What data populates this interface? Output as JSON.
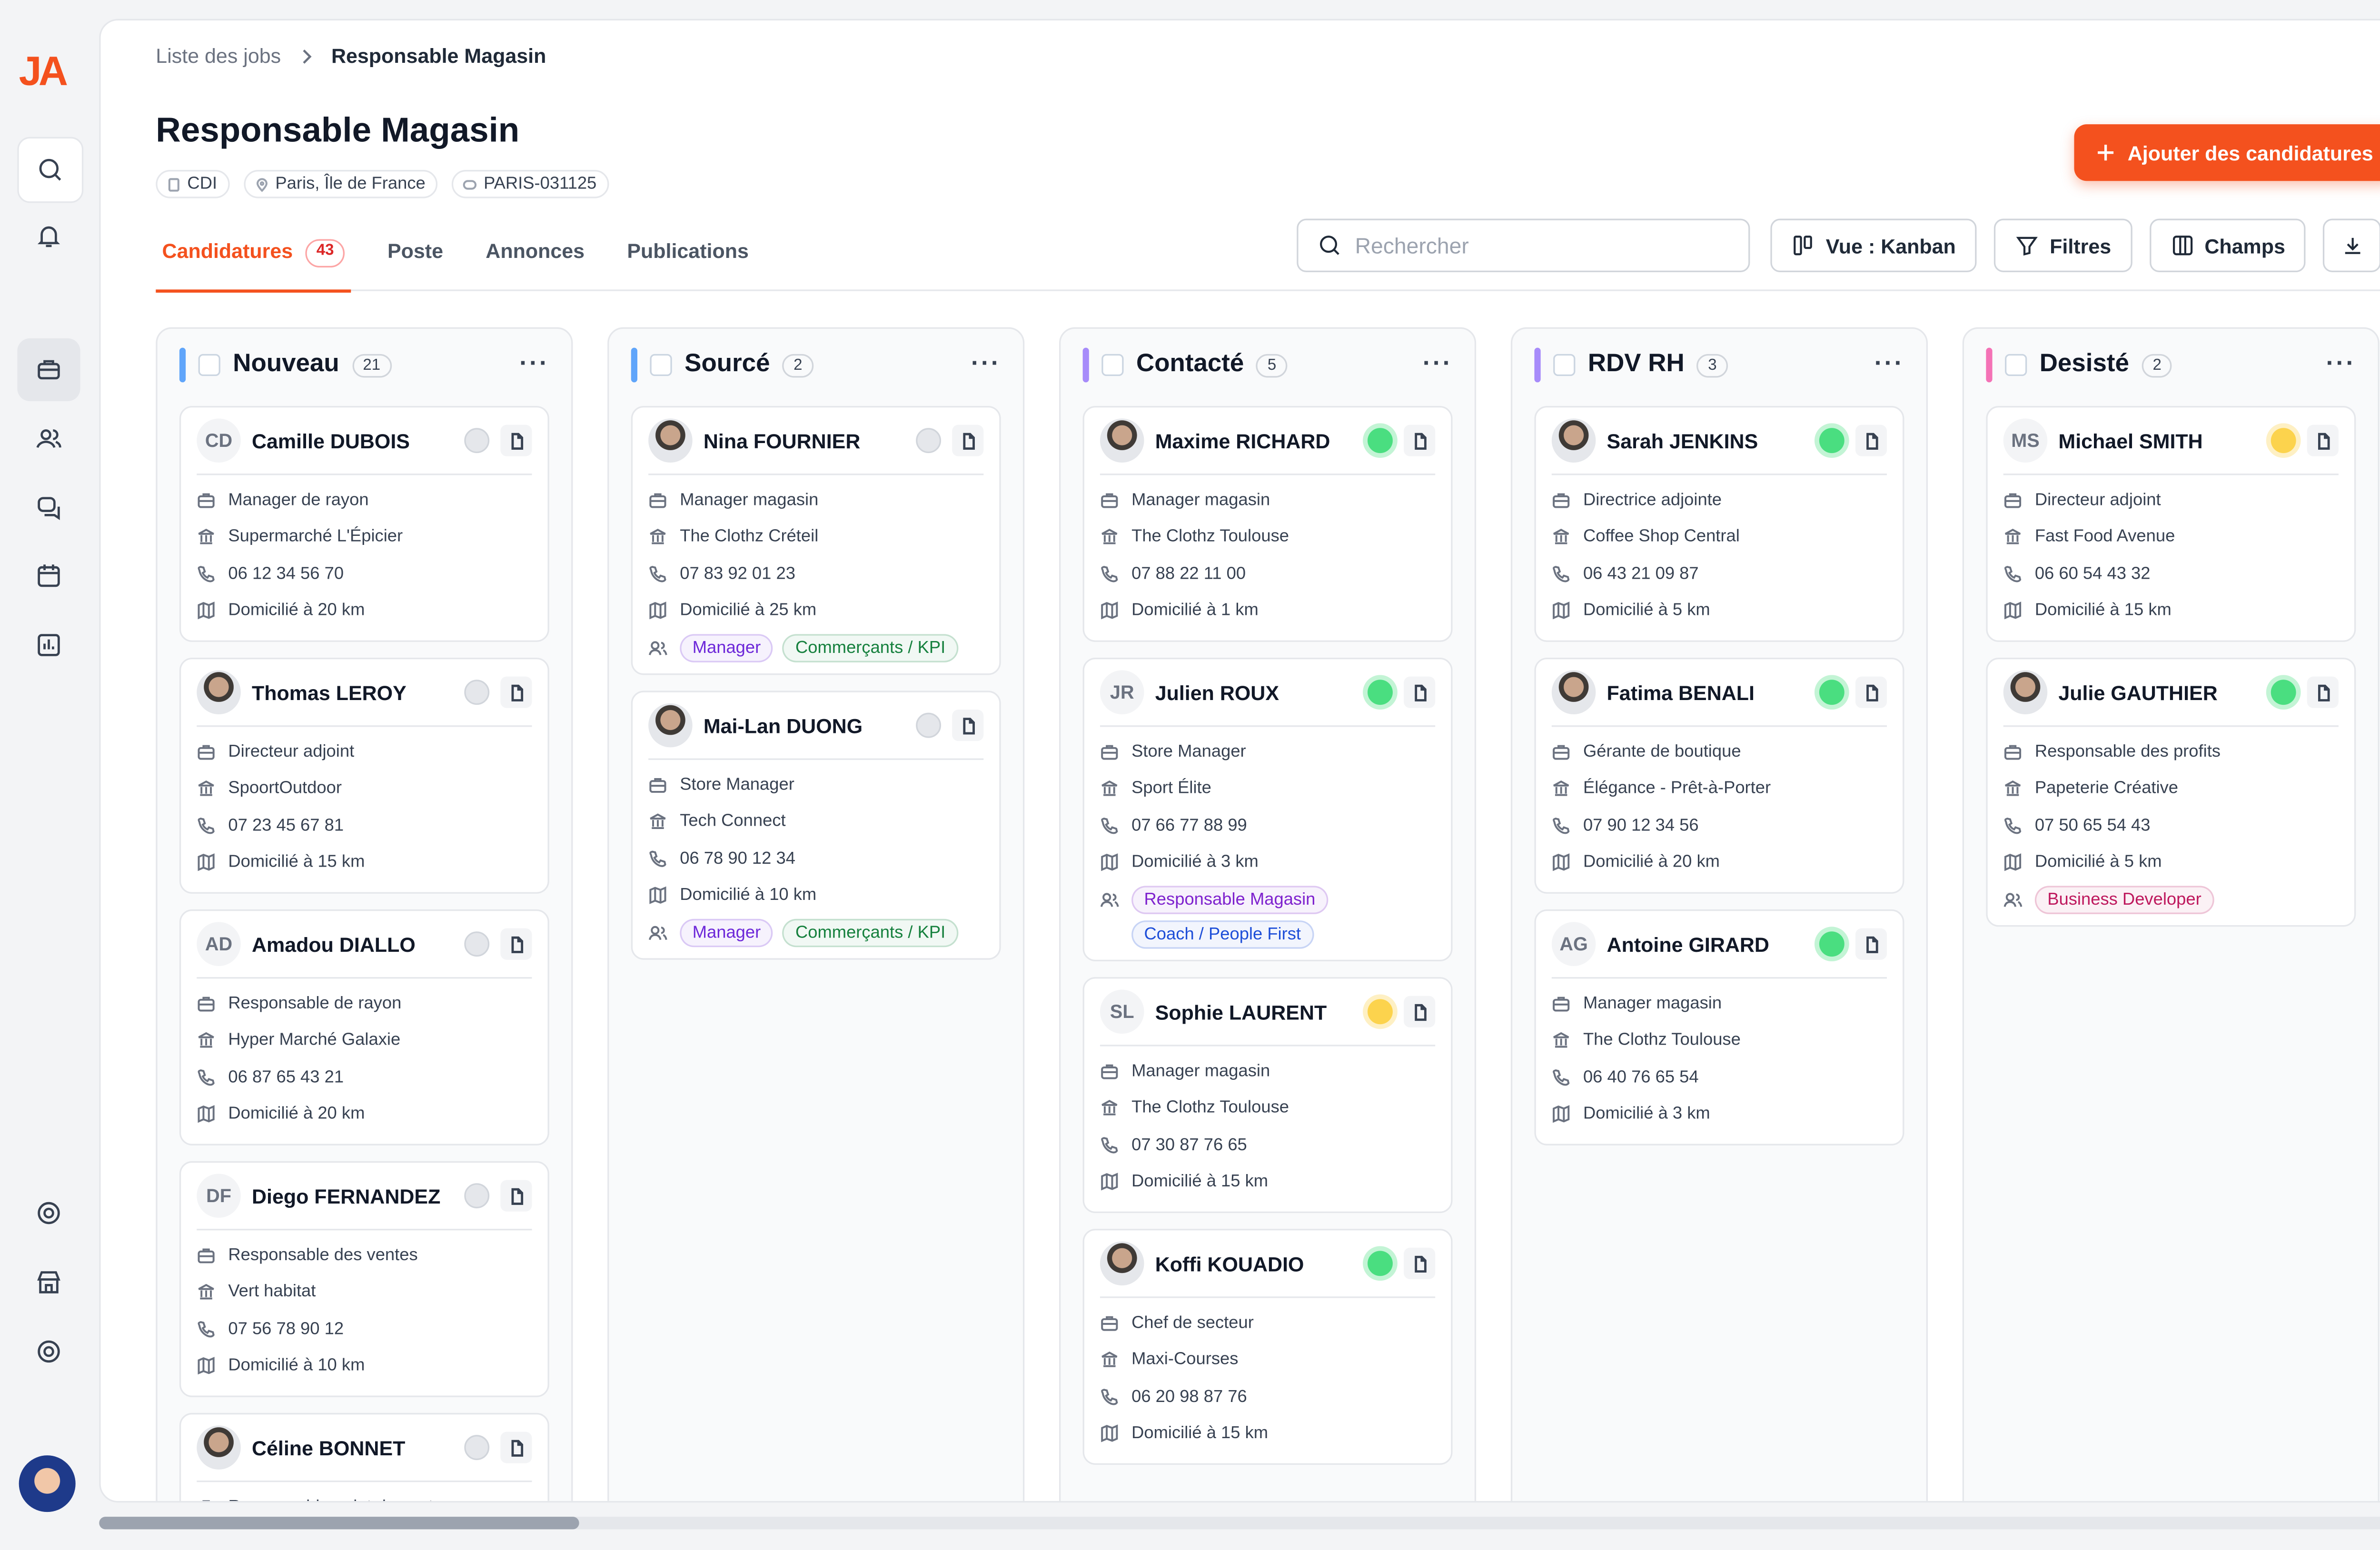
{
  "sidebar": {
    "logo": "JA"
  },
  "breadcrumb": [
    "Liste des jobs",
    "Responsable Magasin"
  ],
  "header": {
    "title": "Responsable Magasin",
    "chips": [
      "CDI",
      "Paris, Île de France",
      "PARIS-031125"
    ],
    "add_button": "Ajouter des candidatures"
  },
  "tabs": [
    {
      "label": "Candidatures",
      "count": 43
    },
    {
      "label": "Poste"
    },
    {
      "label": "Annonces"
    },
    {
      "label": "Publications"
    }
  ],
  "toolbar": {
    "search_placeholder": "Rechercher",
    "view": "Vue : Kanban",
    "filters": "Filtres",
    "fields": "Champs"
  },
  "columns": [
    {
      "title": "Nouveau",
      "count": 21,
      "color": "#60a5fa",
      "cards": [
        {
          "initials": "CD",
          "name": "Camille DUBOIS",
          "status_color": "#e5e7eb",
          "role": "Manager de rayon",
          "company": "Supermarché L'Épicier",
          "phone": "06 12 34 56 70",
          "distance": "Domicilié à 20 km"
        },
        {
          "name": "Thomas LEROY",
          "status_color": "#e5e7eb",
          "role": "Directeur adjoint",
          "company": "SpoortOutdoor",
          "phone": "07 23 45 67 81",
          "distance": "Domicilié à 15 km"
        },
        {
          "initials": "AD",
          "name": "Amadou DIALLO",
          "status_color": "#e5e7eb",
          "role": "Responsable de rayon",
          "company": "Hyper Marché Galaxie",
          "phone": "06 87 65 43 21",
          "distance": "Domicilié à 20 km"
        },
        {
          "initials": "DF",
          "name": "Diego FERNANDEZ",
          "status_color": "#e5e7eb",
          "role": "Responsable des ventes",
          "company": "Vert habitat",
          "phone": "07 56 78 90 12",
          "distance": "Domicilié à 10 km"
        },
        {
          "name": "Céline BONNET",
          "status_color": "#e5e7eb",
          "role": "Responsable point de vente"
        }
      ]
    },
    {
      "title": "Sourcé",
      "count": 2,
      "color": "#60a5fa",
      "cards": [
        {
          "name": "Nina FOURNIER",
          "status_color": "#e5e7eb",
          "role": "Manager magasin",
          "company": "The Clothz Créteil",
          "phone": "07 83 92 01 23",
          "distance": "Domicilié à 25 km",
          "tags": [
            {
              "text": "Manager",
              "color": "#6d28d9"
            },
            {
              "text": "Commerçants / KPI",
              "color": "#15803d"
            }
          ]
        },
        {
          "name": "Mai-Lan DUONG",
          "status_color": "#e5e7eb",
          "role": "Store Manager",
          "company": "Tech Connect",
          "phone": "06 78 90 12 34",
          "distance": "Domicilié à 10 km",
          "tags": [
            {
              "text": "Manager",
              "color": "#6d28d9"
            },
            {
              "text": "Commerçants / KPI",
              "color": "#15803d"
            }
          ]
        }
      ]
    },
    {
      "title": "Contacté",
      "count": 5,
      "color": "#a78bfa",
      "cards": [
        {
          "name": "Maxime RICHARD",
          "status_color": "#4ade80",
          "role": "Manager magasin",
          "company": "The Clothz Toulouse",
          "phone": "07 88 22 11 00",
          "distance": "Domicilié à 1 km"
        },
        {
          "initials": "JR",
          "name": "Julien ROUX",
          "status_color": "#4ade80",
          "role": "Store Manager",
          "company": "Sport Élite",
          "phone": "07 66 77 88 99",
          "distance": "Domicilié à 3 km",
          "tags": [
            {
              "text": "Responsable Magasin",
              "color": "#7e22ce"
            },
            {
              "text": "Coach / People First",
              "color": "#1d4ed8"
            }
          ]
        },
        {
          "initials": "SL",
          "name": "Sophie LAURENT",
          "status_color": "#fcd34d",
          "role": "Manager magasin",
          "company": "The Clothz Toulouse",
          "phone": "07 30 87 76 65",
          "distance": "Domicilié à 15 km"
        },
        {
          "name": "Koffi KOUADIO",
          "status_color": "#4ade80",
          "role": "Chef de secteur",
          "company": "Maxi-Courses",
          "phone": "06 20 98 87 76",
          "distance": "Domicilié à 15 km"
        }
      ]
    },
    {
      "title": "RDV RH",
      "count": 3,
      "color": "#a78bfa",
      "cards": [
        {
          "name": "Sarah JENKINS",
          "status_color": "#4ade80",
          "role": "Directrice adjointe",
          "company": "Coffee Shop Central",
          "phone": "06 43 21 09 87",
          "distance": "Domicilié à 5 km"
        },
        {
          "name": "Fatima BENALI",
          "status_color": "#4ade80",
          "role": "Gérante de boutique",
          "company": "Élégance - Prêt-à-Porter",
          "phone": "07 90 12 34 56",
          "distance": "Domicilié à 20 km"
        },
        {
          "initials": "AG",
          "name": "Antoine GIRARD",
          "status_color": "#4ade80",
          "role": "Manager magasin",
          "company": "The Clothz Toulouse",
          "phone": "06 40 76 65 54",
          "distance": "Domicilié à 3 km"
        }
      ]
    },
    {
      "title": "Desisté",
      "count": 2,
      "color": "#f472b6",
      "cards": [
        {
          "initials": "MS",
          "name": "Michael SMITH",
          "status_color": "#fcd34d",
          "role": "Directeur adjoint",
          "company": "Fast Food Avenue",
          "phone": "06 60 54 43 32",
          "distance": "Domicilié à 15 km"
        },
        {
          "name": "Julie GAUTHIER",
          "status_color": "#4ade80",
          "role": "Responsable des profits",
          "company": "Papeterie Créative",
          "phone": "07 50 65 54 43",
          "distance": "Domicilié à 5 km",
          "tags": [
            {
              "text": "Business Developer",
              "color": "#be185d"
            }
          ]
        }
      ]
    }
  ]
}
